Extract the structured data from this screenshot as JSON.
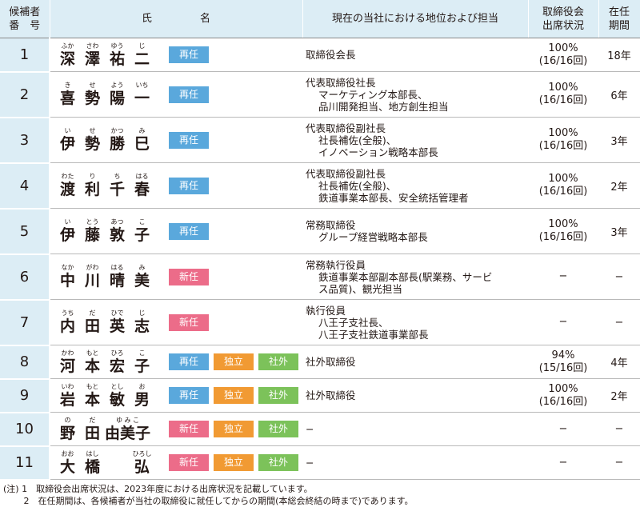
{
  "header": {
    "no_line1": "候補者",
    "no_line2": "番　号",
    "name_a": "氏",
    "name_b": "名",
    "position": "現在の当社における地位および担当",
    "attendance_line1": "取締役会",
    "attendance_line2": "出席状況",
    "tenure_line1": "在任",
    "tenure_line2": "期間"
  },
  "rows": [
    {
      "no": "1",
      "name": [
        {
          "k": "深",
          "r": "ふか"
        },
        {
          "k": "澤",
          "r": "さわ"
        },
        {
          "k": "祐",
          "r": "ゆう"
        },
        {
          "k": "二",
          "r": "じ"
        }
      ],
      "badges": [
        "再任"
      ],
      "pos": [
        "取締役会長"
      ],
      "att1": "100%",
      "att2": "(16/16回)",
      "tenure": "18年"
    },
    {
      "no": "2",
      "name": [
        {
          "k": "喜",
          "r": "き"
        },
        {
          "k": "勢",
          "r": "せ"
        },
        {
          "k": "陽",
          "r": "よう"
        },
        {
          "k": "一",
          "r": "いち"
        }
      ],
      "badges": [
        "再任"
      ],
      "pos": [
        "代表取締役社長",
        "マーケティング本部長、",
        "品川開発担当、地方創生担当"
      ],
      "att1": "100%",
      "att2": "(16/16回)",
      "tenure": "6年"
    },
    {
      "no": "3",
      "name": [
        {
          "k": "伊",
          "r": "い"
        },
        {
          "k": "勢",
          "r": "せ"
        },
        {
          "k": "勝",
          "r": "かつ"
        },
        {
          "k": "巳",
          "r": "み"
        }
      ],
      "badges": [
        "再任"
      ],
      "pos": [
        "代表取締役副社長",
        "社長補佐(全般)、",
        "イノベーション戦略本部長"
      ],
      "att1": "100%",
      "att2": "(16/16回)",
      "tenure": "3年"
    },
    {
      "no": "4",
      "name": [
        {
          "k": "渡",
          "r": "わた"
        },
        {
          "k": "利",
          "r": "り"
        },
        {
          "k": "千",
          "r": "ち"
        },
        {
          "k": "春",
          "r": "はる"
        }
      ],
      "badges": [
        "再任"
      ],
      "pos": [
        "代表取締役副社長",
        "社長補佐(全般)、",
        "鉄道事業本部長、安全統括管理者"
      ],
      "att1": "100%",
      "att2": "(16/16回)",
      "tenure": "2年"
    },
    {
      "no": "5",
      "name": [
        {
          "k": "伊",
          "r": "い"
        },
        {
          "k": "藤",
          "r": "とう"
        },
        {
          "k": "敦",
          "r": "あつ"
        },
        {
          "k": "子",
          "r": "こ"
        }
      ],
      "badges": [
        "再任"
      ],
      "pos": [
        "常務取締役",
        "グループ経営戦略本部長"
      ],
      "att1": "100%",
      "att2": "(16/16回)",
      "tenure": "3年"
    },
    {
      "no": "6",
      "name": [
        {
          "k": "中",
          "r": "なか"
        },
        {
          "k": "川",
          "r": "がわ"
        },
        {
          "k": "晴",
          "r": "はる"
        },
        {
          "k": "美",
          "r": "み"
        }
      ],
      "badges": [
        "新任"
      ],
      "pos": [
        "常務執行役員",
        "鉄道事業本部副本部長(駅業務、サービ",
        "ス品質)、観光担当"
      ],
      "att1": "−",
      "att2": "",
      "tenure": "−"
    },
    {
      "no": "7",
      "name": [
        {
          "k": "内",
          "r": "うち"
        },
        {
          "k": "田",
          "r": "だ"
        },
        {
          "k": "英",
          "r": "ひで"
        },
        {
          "k": "志",
          "r": "じ"
        }
      ],
      "badges": [
        "新任"
      ],
      "pos": [
        "執行役員",
        "八王子支社長、",
        "八王子支社鉄道事業部長"
      ],
      "att1": "−",
      "att2": "",
      "tenure": "−"
    },
    {
      "no": "8",
      "name": [
        {
          "k": "河",
          "r": "かわ"
        },
        {
          "k": "本",
          "r": "もと"
        },
        {
          "k": "宏",
          "r": "ひろ"
        },
        {
          "k": "子",
          "r": "こ"
        }
      ],
      "badges": [
        "再任",
        "独立",
        "社外"
      ],
      "pos": [
        "社外取締役"
      ],
      "att1": "94%",
      "att2": "(15/16回)",
      "tenure": "4年"
    },
    {
      "no": "9",
      "name": [
        {
          "k": "岩",
          "r": "いわ"
        },
        {
          "k": "本",
          "r": "もと"
        },
        {
          "k": "敏",
          "r": "とし"
        },
        {
          "k": "男",
          "r": "お"
        }
      ],
      "badges": [
        "再任",
        "独立",
        "社外"
      ],
      "pos": [
        "社外取締役"
      ],
      "att1": "100%",
      "att2": "(16/16回)",
      "tenure": "2年"
    },
    {
      "no": "10",
      "name": [
        {
          "k": "野",
          "r": "の"
        },
        {
          "k": "田",
          "r": "だ"
        },
        {
          "k": "由美子",
          "r": "ゆ み こ"
        }
      ],
      "badges": [
        "新任",
        "独立",
        "社外"
      ],
      "pos": [
        "−"
      ],
      "att1": "−",
      "att2": "",
      "tenure": "−"
    },
    {
      "no": "11",
      "name": [
        {
          "k": "大",
          "r": "おお"
        },
        {
          "k": "橋",
          "r": "はし"
        },
        {
          "k": "",
          "r": ""
        },
        {
          "k": "弘",
          "r": "ひろし"
        }
      ],
      "badges": [
        "新任",
        "独立",
        "社外"
      ],
      "pos": [
        "−"
      ],
      "att1": "−",
      "att2": "",
      "tenure": "−"
    }
  ],
  "badge_colors": {
    "再任": "#5aa8dc",
    "新任": "#ec6c89",
    "独立": "#f19a33",
    "社外": "#7cc25a"
  },
  "notes": {
    "line1": "(注) 1　取締役会出席状況は、2023年度における出席状況を記載しています。",
    "line2": "　　 2　在任期間は、各候補者が当社の取締役に就任してからの期間(本総会終結の時まで)であります。"
  }
}
